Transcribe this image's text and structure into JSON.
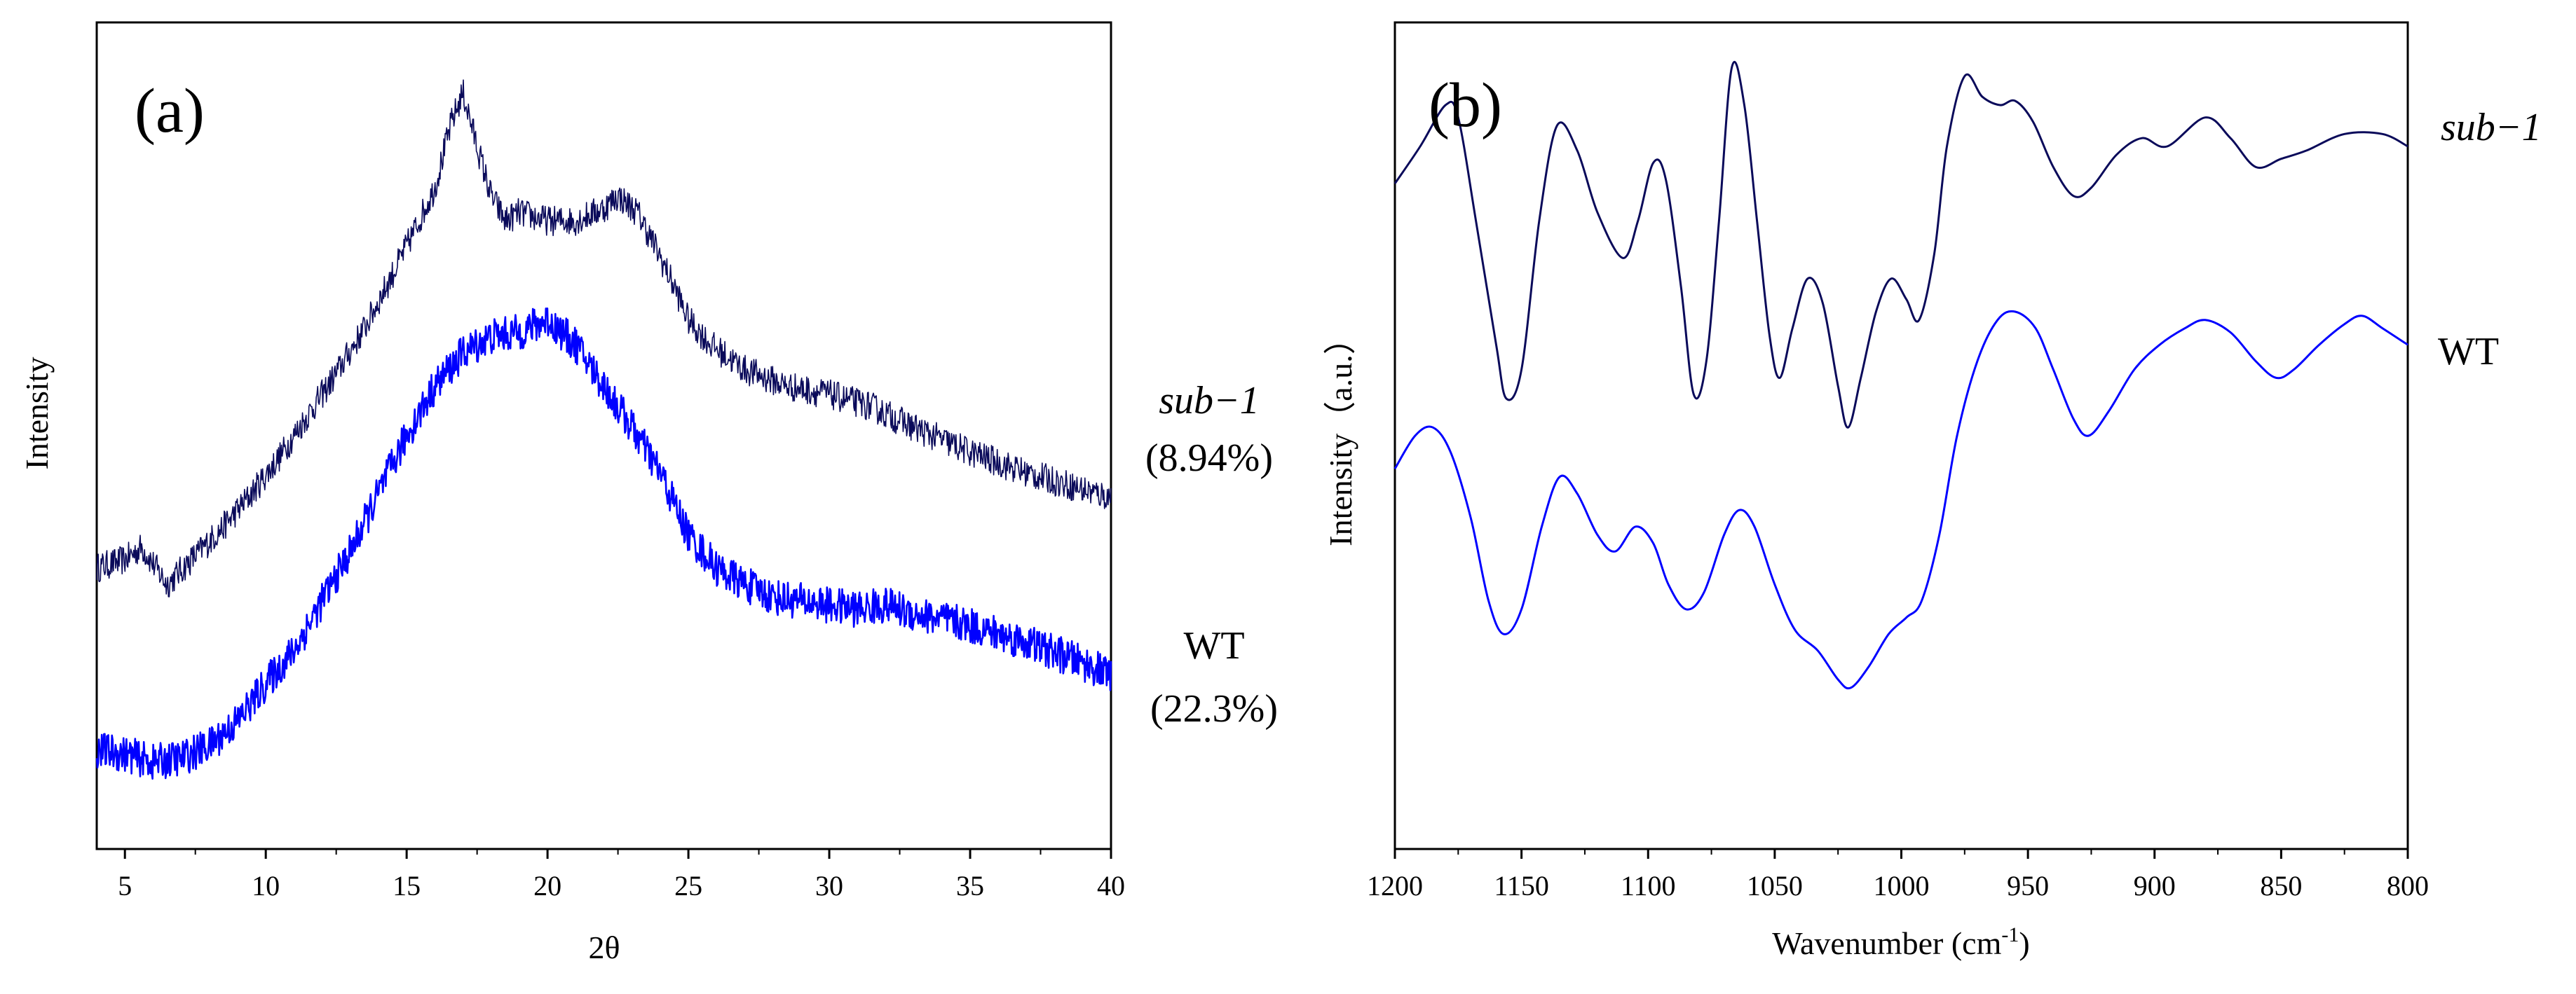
{
  "figure": {
    "panels": [
      {
        "label": "(a)"
      },
      {
        "label": "(b)"
      }
    ]
  },
  "chart_data": [
    {
      "type": "line",
      "panel": "(a)",
      "title": "",
      "xlabel": "2θ",
      "ylabel": "Intensity",
      "xlim": [
        4,
        40
      ],
      "xticks": [
        5,
        10,
        15,
        20,
        25,
        30,
        35,
        40
      ],
      "yticks_shown": false,
      "x_reversed": false,
      "series": [
        {
          "name": "sub−1",
          "sublabel": "(8.94%)",
          "color": "#0a0a5a",
          "noise": 0.018,
          "points": [
            [
              4,
              0.34
            ],
            [
              5,
              0.35
            ],
            [
              5.6,
              0.365
            ],
            [
              6.5,
              0.32
            ],
            [
              7.5,
              0.355
            ],
            [
              8.5,
              0.39
            ],
            [
              9.5,
              0.43
            ],
            [
              10.5,
              0.475
            ],
            [
              11.5,
              0.525
            ],
            [
              12.5,
              0.575
            ],
            [
              13.5,
              0.63
            ],
            [
              14.5,
              0.695
            ],
            [
              15.3,
              0.75
            ],
            [
              16,
              0.8
            ],
            [
              16.6,
              0.88
            ],
            [
              17,
              0.915
            ],
            [
              17.5,
              0.85
            ],
            [
              18,
              0.79
            ],
            [
              18.5,
              0.76
            ],
            [
              19,
              0.77
            ],
            [
              20,
              0.76
            ],
            [
              21,
              0.76
            ],
            [
              22,
              0.775
            ],
            [
              22.5,
              0.79
            ],
            [
              23.2,
              0.77
            ],
            [
              23.8,
              0.73
            ],
            [
              24.5,
              0.68
            ],
            [
              25,
              0.64
            ],
            [
              25.8,
              0.61
            ],
            [
              27,
              0.58
            ],
            [
              28.5,
              0.56
            ],
            [
              30,
              0.55
            ],
            [
              31.5,
              0.535
            ],
            [
              33,
              0.51
            ],
            [
              35,
              0.48
            ],
            [
              37,
              0.455
            ],
            [
              38.5,
              0.44
            ],
            [
              40,
              0.425
            ]
          ]
        },
        {
          "name": "WT",
          "sublabel": "(22.3%)",
          "color": "#0000ff",
          "noise": 0.022,
          "points": [
            [
              4,
              0.12
            ],
            [
              5,
              0.115
            ],
            [
              6,
              0.105
            ],
            [
              7,
              0.11
            ],
            [
              8,
              0.125
            ],
            [
              9,
              0.155
            ],
            [
              10,
              0.2
            ],
            [
              11,
              0.24
            ],
            [
              12,
              0.3
            ],
            [
              13,
              0.36
            ],
            [
              14,
              0.43
            ],
            [
              15,
              0.5
            ],
            [
              16,
              0.56
            ],
            [
              17,
              0.6
            ],
            [
              18,
              0.62
            ],
            [
              19,
              0.625
            ],
            [
              20,
              0.64
            ],
            [
              21,
              0.61
            ],
            [
              22,
              0.56
            ],
            [
              23,
              0.51
            ],
            [
              24,
              0.455
            ],
            [
              25,
              0.38
            ],
            [
              26,
              0.34
            ],
            [
              27,
              0.32
            ],
            [
              28,
              0.305
            ],
            [
              29,
              0.3
            ],
            [
              30,
              0.295
            ],
            [
              31,
              0.29
            ],
            [
              32,
              0.295
            ],
            [
              33,
              0.285
            ],
            [
              35,
              0.27
            ],
            [
              37,
              0.25
            ],
            [
              39,
              0.225
            ],
            [
              40,
              0.21
            ]
          ]
        }
      ]
    },
    {
      "type": "line",
      "panel": "(b)",
      "title": "",
      "xlabel": "Wavenumber  (cm",
      "xlabel_superscript": "-1",
      "xlabel_suffix": ")",
      "ylabel": "Intensity（a.u.）",
      "xlim": [
        1200,
        800
      ],
      "xticks": [
        1200,
        1150,
        1100,
        1050,
        1000,
        950,
        900,
        850,
        800
      ],
      "yticks_shown": false,
      "x_reversed": true,
      "series": [
        {
          "name": "sub−1",
          "color": "#0a0a5a",
          "points": [
            [
              1200,
              0.805
            ],
            [
              1190,
              0.85
            ],
            [
              1180,
              0.9
            ],
            [
              1175,
              0.885
            ],
            [
              1168,
              0.76
            ],
            [
              1160,
              0.61
            ],
            [
              1156,
              0.545
            ],
            [
              1150,
              0.58
            ],
            [
              1143,
              0.76
            ],
            [
              1136,
              0.875
            ],
            [
              1128,
              0.845
            ],
            [
              1120,
              0.77
            ],
            [
              1110,
              0.715
            ],
            [
              1104,
              0.76
            ],
            [
              1098,
              0.83
            ],
            [
              1093,
              0.81
            ],
            [
              1087,
              0.68
            ],
            [
              1082,
              0.55
            ],
            [
              1077,
              0.59
            ],
            [
              1072,
              0.76
            ],
            [
              1067,
              0.945
            ],
            [
              1062,
              0.9
            ],
            [
              1057,
              0.76
            ],
            [
              1052,
              0.62
            ],
            [
              1048,
              0.57
            ],
            [
              1043,
              0.63
            ],
            [
              1037,
              0.69
            ],
            [
              1031,
              0.66
            ],
            [
              1025,
              0.56
            ],
            [
              1021,
              0.51
            ],
            [
              1016,
              0.57
            ],
            [
              1010,
              0.65
            ],
            [
              1004,
              0.69
            ],
            [
              998,
              0.665
            ],
            [
              993,
              0.64
            ],
            [
              987,
              0.72
            ],
            [
              982,
              0.85
            ],
            [
              975,
              0.935
            ],
            [
              968,
              0.91
            ],
            [
              961,
              0.9
            ],
            [
              955,
              0.905
            ],
            [
              948,
              0.88
            ],
            [
              940,
              0.825
            ],
            [
              932,
              0.79
            ],
            [
              925,
              0.8
            ],
            [
              915,
              0.84
            ],
            [
              905,
              0.86
            ],
            [
              895,
              0.85
            ],
            [
              880,
              0.885
            ],
            [
              870,
              0.86
            ],
            [
              860,
              0.825
            ],
            [
              850,
              0.835
            ],
            [
              840,
              0.845
            ],
            [
              825,
              0.865
            ],
            [
              810,
              0.865
            ],
            [
              800,
              0.85
            ]
          ]
        },
        {
          "name": "WT",
          "color": "#0000ff",
          "points": [
            [
              1200,
              0.46
            ],
            [
              1192,
              0.5
            ],
            [
              1185,
              0.51
            ],
            [
              1178,
              0.48
            ],
            [
              1170,
              0.4
            ],
            [
              1163,
              0.3
            ],
            [
              1157,
              0.26
            ],
            [
              1150,
              0.29
            ],
            [
              1142,
              0.39
            ],
            [
              1135,
              0.45
            ],
            [
              1128,
              0.43
            ],
            [
              1120,
              0.38
            ],
            [
              1113,
              0.36
            ],
            [
              1105,
              0.39
            ],
            [
              1098,
              0.37
            ],
            [
              1092,
              0.32
            ],
            [
              1085,
              0.29
            ],
            [
              1078,
              0.31
            ],
            [
              1070,
              0.38
            ],
            [
              1064,
              0.41
            ],
            [
              1058,
              0.39
            ],
            [
              1050,
              0.32
            ],
            [
              1042,
              0.265
            ],
            [
              1033,
              0.24
            ],
            [
              1025,
              0.205
            ],
            [
              1020,
              0.195
            ],
            [
              1013,
              0.22
            ],
            [
              1005,
              0.26
            ],
            [
              998,
              0.28
            ],
            [
              992,
              0.3
            ],
            [
              985,
              0.38
            ],
            [
              978,
              0.5
            ],
            [
              970,
              0.59
            ],
            [
              962,
              0.64
            ],
            [
              955,
              0.65
            ],
            [
              947,
              0.63
            ],
            [
              940,
              0.58
            ],
            [
              932,
              0.52
            ],
            [
              926,
              0.5
            ],
            [
              918,
              0.53
            ],
            [
              908,
              0.58
            ],
            [
              898,
              0.61
            ],
            [
              888,
              0.63
            ],
            [
              880,
              0.64
            ],
            [
              870,
              0.625
            ],
            [
              860,
              0.59
            ],
            [
              852,
              0.57
            ],
            [
              845,
              0.58
            ],
            [
              835,
              0.61
            ],
            [
              825,
              0.635
            ],
            [
              818,
              0.645
            ],
            [
              810,
              0.63
            ],
            [
              800,
              0.61
            ]
          ]
        }
      ]
    }
  ]
}
